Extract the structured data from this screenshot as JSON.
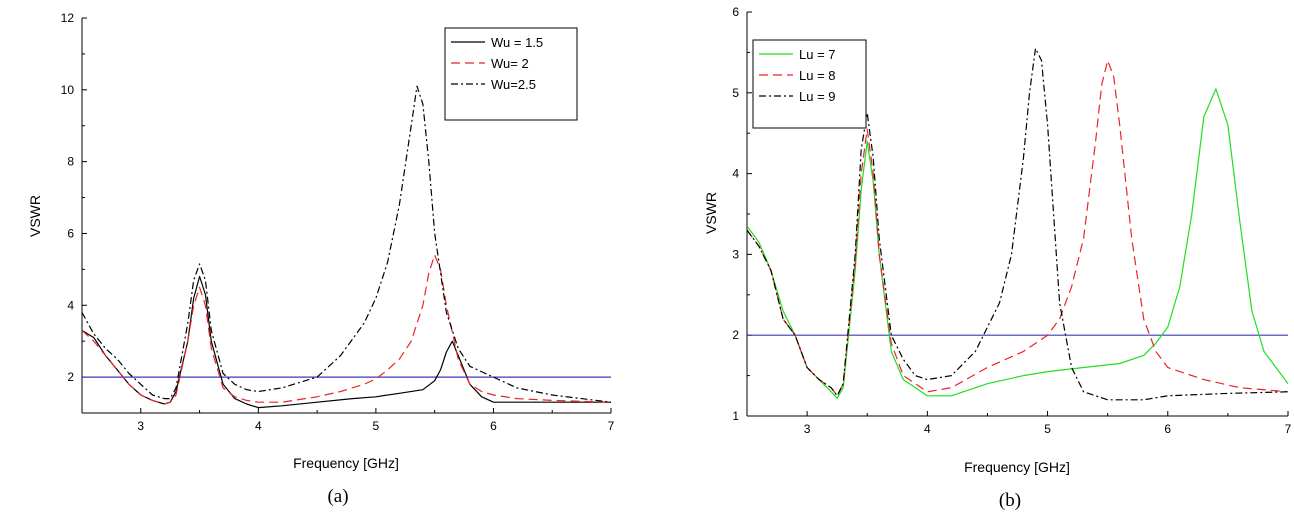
{
  "chart_data": [
    {
      "type": "line",
      "caption": "(a)",
      "xlabel": "Frequency [GHz]",
      "ylabel": "VSWR",
      "xlim": [
        2.5,
        7
      ],
      "ylim": [
        1,
        12
      ],
      "xticks": [
        3,
        4,
        5,
        6,
        7
      ],
      "yticks": [
        2,
        4,
        6,
        8,
        10,
        12
      ],
      "legend": "top-right",
      "grid": false,
      "reference_line": {
        "y": 2,
        "color": "#3a3ab8"
      },
      "series": [
        {
          "name": "Wu = 1.5",
          "color": "#000000",
          "dash": "solid",
          "x": [
            2.5,
            2.6,
            2.7,
            2.8,
            2.9,
            3.0,
            3.1,
            3.2,
            3.25,
            3.3,
            3.4,
            3.45,
            3.5,
            3.55,
            3.6,
            3.7,
            3.8,
            3.9,
            4.0,
            4.2,
            4.5,
            4.8,
            5.0,
            5.2,
            5.4,
            5.5,
            5.55,
            5.6,
            5.65,
            5.7,
            5.8,
            5.9,
            6.0,
            6.2,
            6.5,
            7.0
          ],
          "y": [
            3.3,
            3.1,
            2.6,
            2.2,
            1.8,
            1.5,
            1.35,
            1.25,
            1.3,
            1.6,
            3.0,
            4.2,
            4.8,
            4.3,
            3.0,
            1.8,
            1.4,
            1.25,
            1.15,
            1.2,
            1.3,
            1.4,
            1.45,
            1.55,
            1.65,
            1.9,
            2.2,
            2.7,
            3.0,
            2.6,
            1.8,
            1.45,
            1.3,
            1.3,
            1.3,
            1.3
          ]
        },
        {
          "name": "Wu= 2",
          "color": "#e8242a",
          "dash": "long",
          "x": [
            2.5,
            2.6,
            2.7,
            2.8,
            2.9,
            3.0,
            3.1,
            3.2,
            3.25,
            3.3,
            3.4,
            3.45,
            3.5,
            3.55,
            3.6,
            3.7,
            3.8,
            3.9,
            4.0,
            4.2,
            4.5,
            4.7,
            4.9,
            5.0,
            5.1,
            5.2,
            5.3,
            5.4,
            5.45,
            5.5,
            5.55,
            5.6,
            5.7,
            5.8,
            5.9,
            6.0,
            6.2,
            6.5,
            7.0
          ],
          "y": [
            3.3,
            3.0,
            2.6,
            2.2,
            1.8,
            1.5,
            1.35,
            1.25,
            1.3,
            1.5,
            3.0,
            4.0,
            4.5,
            4.0,
            2.8,
            1.7,
            1.45,
            1.35,
            1.3,
            1.3,
            1.45,
            1.6,
            1.8,
            1.95,
            2.2,
            2.5,
            3.0,
            4.0,
            4.9,
            5.4,
            5.0,
            4.0,
            2.5,
            1.8,
            1.6,
            1.5,
            1.4,
            1.35,
            1.3
          ]
        },
        {
          "name": "Wu=2.5",
          "color": "#000000",
          "dash": "dashdot",
          "x": [
            2.5,
            2.6,
            2.7,
            2.8,
            2.9,
            3.0,
            3.1,
            3.2,
            3.25,
            3.3,
            3.4,
            3.45,
            3.5,
            3.55,
            3.6,
            3.7,
            3.8,
            3.9,
            4.0,
            4.2,
            4.5,
            4.7,
            4.9,
            5.0,
            5.1,
            5.2,
            5.3,
            5.35,
            5.4,
            5.45,
            5.5,
            5.6,
            5.7,
            5.8,
            6.0,
            6.2,
            6.5,
            7.0
          ],
          "y": [
            3.8,
            3.2,
            2.8,
            2.5,
            2.1,
            1.8,
            1.5,
            1.4,
            1.4,
            1.7,
            3.5,
            4.7,
            5.15,
            4.7,
            3.3,
            2.1,
            1.8,
            1.65,
            1.6,
            1.7,
            2.0,
            2.6,
            3.5,
            4.2,
            5.2,
            6.8,
            9.0,
            10.1,
            9.6,
            8.0,
            6.0,
            3.8,
            2.8,
            2.3,
            2.0,
            1.7,
            1.5,
            1.3
          ]
        }
      ]
    },
    {
      "type": "line",
      "caption": "(b)",
      "xlabel": "Frequency [GHz]",
      "ylabel": "VSWR",
      "xlim": [
        2.5,
        7
      ],
      "ylim": [
        1,
        6
      ],
      "xticks": [
        3,
        4,
        5,
        6,
        7
      ],
      "yticks": [
        1,
        2,
        3,
        4,
        5,
        6
      ],
      "legend": "top-left",
      "grid": false,
      "reference_line": {
        "y": 2,
        "color": "#3a3ab8"
      },
      "series": [
        {
          "name": "Lu = 7",
          "color": "#22dd22",
          "dash": "solid",
          "x": [
            2.5,
            2.6,
            2.7,
            2.8,
            2.9,
            3.0,
            3.1,
            3.2,
            3.25,
            3.3,
            3.4,
            3.45,
            3.5,
            3.55,
            3.6,
            3.7,
            3.8,
            3.9,
            4.0,
            4.2,
            4.5,
            4.8,
            5.0,
            5.3,
            5.6,
            5.8,
            5.9,
            6.0,
            6.1,
            6.2,
            6.3,
            6.4,
            6.5,
            6.6,
            6.7,
            6.8,
            7.0
          ],
          "y": [
            3.35,
            3.15,
            2.8,
            2.3,
            2.0,
            1.6,
            1.45,
            1.3,
            1.22,
            1.35,
            2.8,
            3.8,
            4.4,
            3.9,
            3.0,
            1.8,
            1.45,
            1.35,
            1.25,
            1.25,
            1.4,
            1.5,
            1.55,
            1.6,
            1.65,
            1.75,
            1.9,
            2.1,
            2.6,
            3.5,
            4.7,
            5.05,
            4.6,
            3.4,
            2.3,
            1.8,
            1.4
          ]
        },
        {
          "name": "Lu = 8",
          "color": "#e8242a",
          "dash": "long",
          "x": [
            2.5,
            2.6,
            2.7,
            2.8,
            2.9,
            3.0,
            3.1,
            3.2,
            3.25,
            3.3,
            3.4,
            3.45,
            3.5,
            3.55,
            3.6,
            3.7,
            3.8,
            3.9,
            4.0,
            4.2,
            4.5,
            4.8,
            5.0,
            5.1,
            5.2,
            5.3,
            5.4,
            5.45,
            5.5,
            5.55,
            5.6,
            5.7,
            5.8,
            5.9,
            6.0,
            6.3,
            6.6,
            7.0
          ],
          "y": [
            3.3,
            3.1,
            2.8,
            2.2,
            2.0,
            1.6,
            1.45,
            1.35,
            1.25,
            1.4,
            2.9,
            4.0,
            4.55,
            4.0,
            3.0,
            1.9,
            1.5,
            1.4,
            1.3,
            1.35,
            1.6,
            1.8,
            2.0,
            2.2,
            2.6,
            3.2,
            4.4,
            5.1,
            5.4,
            5.2,
            4.6,
            3.2,
            2.2,
            1.8,
            1.6,
            1.45,
            1.35,
            1.3
          ]
        },
        {
          "name": "Lu = 9",
          "color": "#000000",
          "dash": "dashdot",
          "x": [
            2.5,
            2.6,
            2.7,
            2.8,
            2.9,
            3.0,
            3.1,
            3.2,
            3.25,
            3.3,
            3.4,
            3.45,
            3.5,
            3.55,
            3.6,
            3.7,
            3.8,
            3.9,
            4.0,
            4.2,
            4.4,
            4.6,
            4.7,
            4.8,
            4.85,
            4.9,
            4.95,
            5.0,
            5.05,
            5.1,
            5.2,
            5.3,
            5.5,
            5.8,
            6.0,
            6.5,
            7.0
          ],
          "y": [
            3.3,
            3.1,
            2.8,
            2.2,
            2.0,
            1.6,
            1.45,
            1.35,
            1.25,
            1.4,
            3.0,
            4.3,
            4.75,
            4.2,
            3.2,
            2.0,
            1.7,
            1.5,
            1.45,
            1.5,
            1.8,
            2.4,
            3.0,
            4.2,
            5.0,
            5.55,
            5.4,
            4.6,
            3.5,
            2.4,
            1.6,
            1.3,
            1.2,
            1.2,
            1.25,
            1.28,
            1.3
          ]
        }
      ]
    }
  ]
}
